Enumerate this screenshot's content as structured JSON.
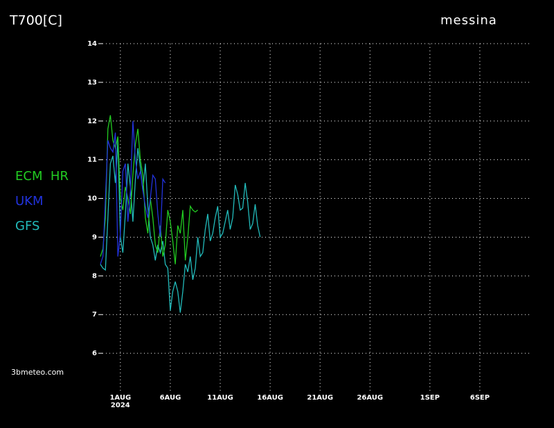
{
  "chart_data": {
    "type": "line",
    "title": "T700[C]",
    "location": "messina",
    "credit": "3bmeteo.com",
    "x_sublabel": "2024",
    "x": [
      "2024-07-30T00:00",
      "2024-07-30T06:00",
      "2024-07-30T12:00",
      "2024-07-30T18:00",
      "2024-07-31T00:00",
      "2024-07-31T06:00",
      "2024-07-31T12:00",
      "2024-07-31T18:00",
      "2024-08-01T00:00",
      "2024-08-01T06:00",
      "2024-08-01T12:00",
      "2024-08-01T18:00",
      "2024-08-02T00:00",
      "2024-08-02T06:00",
      "2024-08-02T12:00",
      "2024-08-02T18:00",
      "2024-08-03T00:00",
      "2024-08-03T06:00",
      "2024-08-03T12:00",
      "2024-08-03T18:00",
      "2024-08-04T00:00",
      "2024-08-04T06:00",
      "2024-08-04T12:00",
      "2024-08-04T18:00",
      "2024-08-05T00:00",
      "2024-08-05T06:00",
      "2024-08-05T12:00",
      "2024-08-05T18:00",
      "2024-08-06T00:00",
      "2024-08-06T06:00",
      "2024-08-06T12:00",
      "2024-08-06T18:00",
      "2024-08-07T00:00",
      "2024-08-07T06:00",
      "2024-08-07T12:00",
      "2024-08-07T18:00",
      "2024-08-08T00:00",
      "2024-08-08T06:00",
      "2024-08-08T12:00",
      "2024-08-08T18:00",
      "2024-08-09T00:00",
      "2024-08-09T06:00",
      "2024-08-09T12:00",
      "2024-08-09T18:00",
      "2024-08-10T00:00",
      "2024-08-10T06:00",
      "2024-08-10T12:00",
      "2024-08-10T18:00",
      "2024-08-11T00:00",
      "2024-08-11T06:00",
      "2024-08-11T12:00",
      "2024-08-11T18:00",
      "2024-08-12T00:00",
      "2024-08-12T06:00",
      "2024-08-12T12:00",
      "2024-08-12T18:00",
      "2024-08-13T00:00",
      "2024-08-13T06:00",
      "2024-08-13T12:00",
      "2024-08-13T18:00",
      "2024-08-14T00:00",
      "2024-08-14T06:00",
      "2024-08-14T12:00",
      "2024-08-14T18:00",
      "2024-08-15T00:00"
    ],
    "series": [
      {
        "name": "ECM  HR",
        "color": "#22cc22",
        "values": [
          8.5,
          8.7,
          9.5,
          11.8,
          12.15,
          11.5,
          11.3,
          11.6,
          10.0,
          9.7,
          10.3,
          10.0,
          9.6,
          10.6,
          11.4,
          11.8,
          11.0,
          10.6,
          9.5,
          9.1,
          10.0,
          9.5,
          8.8,
          8.6,
          9.3,
          8.5,
          8.8,
          9.7,
          9.4,
          8.9,
          8.3,
          9.3,
          9.1,
          9.7,
          8.4,
          9.0,
          9.8,
          9.7,
          9.65,
          9.7,
          null,
          null,
          null,
          null,
          null,
          null,
          null,
          null,
          null,
          null,
          null,
          null,
          null,
          null,
          null,
          null,
          null,
          null,
          null,
          null,
          null,
          null,
          null,
          null,
          null
        ]
      },
      {
        "name": "UKM",
        "color": "#2233dd",
        "values": [
          8.3,
          8.5,
          10.0,
          11.5,
          11.3,
          11.2,
          11.7,
          8.5,
          9.1,
          10.7,
          10.9,
          9.4,
          10.2,
          12.0,
          11.0,
          10.5,
          10.7,
          10.2,
          9.8,
          9.5,
          10.0,
          10.6,
          10.5,
          9.6,
          9.0,
          10.5,
          10.4,
          null,
          null,
          null,
          null,
          null,
          null,
          null,
          null,
          null,
          null,
          null,
          null,
          null,
          null,
          null,
          null,
          null,
          null,
          null,
          null,
          null,
          null,
          null,
          null,
          null,
          null,
          null,
          null,
          null,
          null,
          null,
          null,
          null,
          null,
          null,
          null,
          null,
          null
        ]
      },
      {
        "name": "GFS",
        "color": "#22bbbb",
        "values": [
          8.3,
          8.2,
          8.15,
          9.5,
          10.9,
          11.1,
          10.4,
          11.5,
          9.0,
          8.6,
          9.6,
          10.9,
          10.3,
          9.4,
          10.5,
          11.3,
          10.8,
          10.2,
          10.9,
          9.8,
          9.0,
          8.8,
          8.4,
          8.8,
          8.6,
          8.9,
          8.3,
          8.2,
          7.1,
          7.6,
          7.85,
          7.6,
          7.05,
          7.6,
          8.3,
          8.1,
          8.5,
          7.9,
          8.2,
          9.0,
          8.5,
          8.6,
          9.2,
          9.6,
          8.9,
          9.1,
          9.5,
          9.8,
          9.0,
          9.1,
          9.4,
          9.7,
          9.2,
          9.5,
          10.35,
          10.1,
          9.7,
          9.75,
          10.4,
          9.9,
          9.2,
          9.35,
          9.85,
          9.3,
          9.0
        ]
      }
    ],
    "xlim": [
      "2024-07-30T00:00",
      "2024-09-11T00:00"
    ],
    "xticks": [
      {
        "value": "2024-08-01T00:00",
        "label": "1AUG"
      },
      {
        "value": "2024-08-06T00:00",
        "label": "6AUG"
      },
      {
        "value": "2024-08-11T00:00",
        "label": "11AUG"
      },
      {
        "value": "2024-08-16T00:00",
        "label": "16AUG"
      },
      {
        "value": "2024-08-21T00:00",
        "label": "21AUG"
      },
      {
        "value": "2024-08-26T00:00",
        "label": "26AUG"
      },
      {
        "value": "2024-09-01T00:00",
        "label": "1SEP"
      },
      {
        "value": "2024-09-06T00:00",
        "label": "6SEP"
      }
    ],
    "ylim": [
      5,
      14
    ],
    "yticks": [
      6,
      7,
      8,
      9,
      10,
      11,
      12,
      13,
      14
    ],
    "grid": true
  }
}
